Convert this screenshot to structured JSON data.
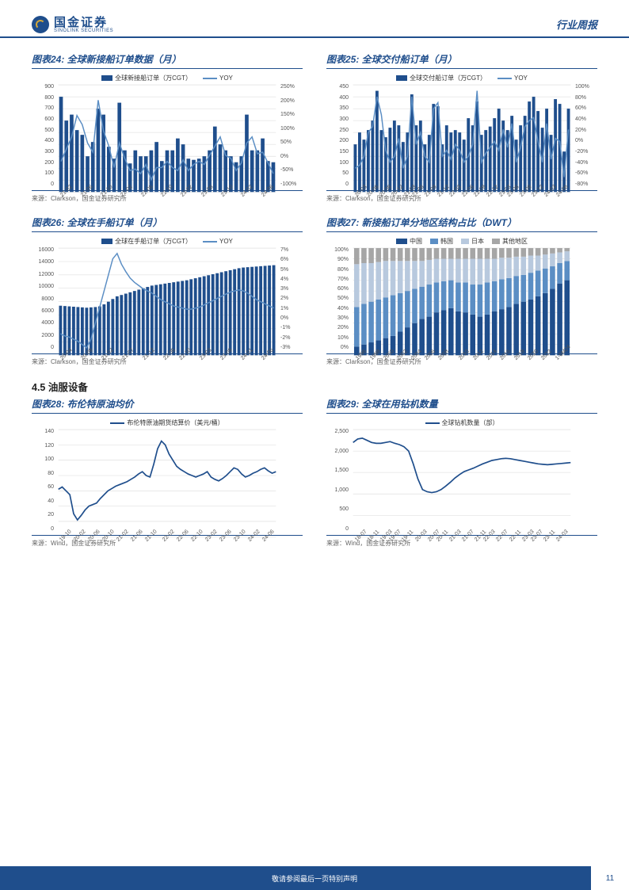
{
  "header": {
    "brand_cn": "国金证券",
    "brand_en": "SINOLINK SECURITIES",
    "report_type": "行业周报"
  },
  "footer": {
    "disclaimer": "敬请参阅最后一页特别声明",
    "page_number": "11"
  },
  "section_45": "4.5 油服设备",
  "colors": {
    "brand": "#1f4e8c",
    "accent": "#5b8ec4",
    "grid": "#d9d9d9",
    "stack1": "#1f4e8c",
    "stack2": "#5b8ec4",
    "stack3": "#b8c9de",
    "stack4": "#a6a6a6"
  },
  "c24": {
    "title": "图表24: 全球新接船订单数据（月）",
    "legend_bar": "全球新接船订单（万CGT）",
    "legend_line": "YOY",
    "axis_left": [
      "900",
      "800",
      "700",
      "600",
      "500",
      "400",
      "300",
      "200",
      "100",
      "0"
    ],
    "axis_right": [
      "250%",
      "200%",
      "150%",
      "100%",
      "50%",
      "0%",
      "-50%",
      "-100%"
    ],
    "xticks": [
      "21-02",
      "21-06",
      "21-10",
      "22-02",
      "22-06",
      "22-10",
      "23-02",
      "23-06",
      "23-10",
      "24-02",
      "24-06"
    ],
    "bars": [
      800,
      600,
      650,
      520,
      480,
      300,
      420,
      700,
      650,
      380,
      280,
      750,
      350,
      240,
      350,
      300,
      300,
      350,
      420,
      260,
      350,
      350,
      450,
      400,
      280,
      270,
      280,
      300,
      350,
      550,
      400,
      350,
      300,
      250,
      300,
      650,
      350,
      350,
      450,
      260,
      250
    ],
    "line_yoy": [
      0,
      40,
      80,
      150,
      120,
      60,
      30,
      200,
      100,
      50,
      -20,
      60,
      10,
      -30,
      -25,
      -40,
      -10,
      -60,
      -20,
      -20,
      0,
      -20,
      -30,
      5,
      -30,
      -10,
      0,
      -10,
      20,
      50,
      80,
      20,
      10,
      -30,
      -5,
      60,
      80,
      25,
      30,
      -5,
      -40
    ],
    "ylim_bar": [
      0,
      900
    ],
    "ylim_line": [
      -100,
      250
    ],
    "source": "来源：Clarkson，国金证券研究所"
  },
  "c25": {
    "title": "图表25: 全球交付船订单（月）",
    "legend_bar": "全球交付船订单（万CGT）",
    "legend_line": "YOY",
    "axis_left": [
      "450",
      "400",
      "350",
      "300",
      "250",
      "200",
      "150",
      "100",
      "50",
      "0"
    ],
    "axis_right": [
      "100%",
      "80%",
      "60%",
      "40%",
      "20%",
      "0%",
      "-20%",
      "-40%",
      "-60%",
      "-80%"
    ],
    "xticks": [
      "20-03",
      "20-06",
      "20-09",
      "20-12",
      "21-03",
      "21-06",
      "21-09",
      "21-12",
      "22-03",
      "22-06",
      "22-09",
      "22-12",
      "23-03",
      "23-06",
      "23-09",
      "23-12",
      "24-03",
      "24-06"
    ],
    "bars": [
      200,
      250,
      220,
      260,
      300,
      425,
      260,
      230,
      270,
      300,
      280,
      210,
      250,
      410,
      280,
      300,
      200,
      240,
      370,
      360,
      200,
      280,
      250,
      260,
      250,
      220,
      310,
      280,
      380,
      240,
      260,
      275,
      310,
      350,
      300,
      260,
      320,
      220,
      280,
      320,
      380,
      400,
      340,
      270,
      350,
      240,
      390,
      370,
      170,
      350
    ],
    "line_yoy": [
      -40,
      -35,
      -20,
      20,
      30,
      80,
      50,
      -10,
      -30,
      -20,
      10,
      -40,
      -20,
      80,
      0,
      20,
      -20,
      -30,
      60,
      70,
      -20,
      -10,
      -25,
      0,
      -10,
      -30,
      -20,
      0,
      90,
      -30,
      -15,
      -5,
      5,
      -10,
      25,
      -5,
      35,
      -30,
      -5,
      30,
      40,
      45,
      5,
      -30,
      35,
      -25,
      10,
      5,
      -55,
      25
    ],
    "ylim_bar": [
      0,
      450
    ],
    "ylim_line": [
      -80,
      100
    ],
    "source": "来源：Clarkson，国金证券研究所"
  },
  "c26": {
    "title": "图表26: 全球在手船订单（月）",
    "legend_bar": "全球在手船订单（万CGT）",
    "legend_line": "YOY",
    "axis_left": [
      "16000",
      "14000",
      "12000",
      "10000",
      "8000",
      "6000",
      "4000",
      "2000",
      "0"
    ],
    "axis_right": [
      "7%",
      "6%",
      "5%",
      "4%",
      "3%",
      "2%",
      "1%",
      "0%",
      "-1%",
      "-2%",
      "-3%"
    ],
    "xticks": [
      "20-04",
      "20-09",
      "21-02",
      "21-07",
      "21-12",
      "22-05",
      "22-10",
      "23-03",
      "23-08",
      "24-01",
      "24-06"
    ],
    "bars": [
      7400,
      7350,
      7300,
      7250,
      7200,
      7150,
      7100,
      7150,
      7200,
      7300,
      7600,
      8000,
      8400,
      8800,
      9000,
      9200,
      9400,
      9600,
      9800,
      10000,
      10200,
      10400,
      10500,
      10600,
      10700,
      10800,
      10900,
      11000,
      11100,
      11200,
      11350,
      11500,
      11650,
      11800,
      11950,
      12100,
      12250,
      12400,
      12550,
      12700,
      12850,
      13000,
      13100,
      13150,
      13200,
      13250,
      13300,
      13350,
      13400,
      13450
    ],
    "line_yoy": [
      -1.0,
      -1.2,
      -1.3,
      -1.5,
      -1.7,
      -2.0,
      -2.3,
      -1.5,
      0,
      1.5,
      3.0,
      4.5,
      6.0,
      6.5,
      5.5,
      4.8,
      4.2,
      3.8,
      3.5,
      3.2,
      3.0,
      2.8,
      2.5,
      2.2,
      2.0,
      1.8,
      1.6,
      1.5,
      1.4,
      1.3,
      1.3,
      1.4,
      1.5,
      1.7,
      1.9,
      2.1,
      2.3,
      2.5,
      2.7,
      2.9,
      3.0,
      3.1,
      3.0,
      2.8,
      2.5,
      2.2,
      2.0,
      1.8,
      1.6,
      1.4
    ],
    "ylim_bar": [
      0,
      16000
    ],
    "ylim_line": [
      -3,
      7
    ],
    "source": "来源：Clarkson，国金证券研究所"
  },
  "c27": {
    "title": "图表27: 新接船订单分地区结构占比（DWT）",
    "legend": {
      "cn": "中国",
      "kr": "韩国",
      "jp": "日本",
      "other": "其他地区"
    },
    "axis_left": [
      "100%",
      "90%",
      "80%",
      "70%",
      "60%",
      "50%",
      "40%",
      "30%",
      "20%",
      "10%",
      "0%"
    ],
    "xticks": [
      "1996",
      "1998",
      "2000",
      "2002",
      "2004",
      "2006",
      "2008",
      "2010",
      "2012",
      "2014",
      "2016",
      "2018",
      "2020",
      "2022",
      "1-6M24"
    ],
    "stacks": [
      [
        8,
        37,
        40,
        15
      ],
      [
        10,
        38,
        38,
        14
      ],
      [
        12,
        38,
        36,
        14
      ],
      [
        14,
        38,
        35,
        13
      ],
      [
        16,
        38,
        34,
        12
      ],
      [
        18,
        38,
        32,
        12
      ],
      [
        22,
        36,
        30,
        12
      ],
      [
        26,
        34,
        28,
        12
      ],
      [
        30,
        32,
        26,
        12
      ],
      [
        34,
        30,
        24,
        12
      ],
      [
        36,
        30,
        23,
        11
      ],
      [
        40,
        28,
        22,
        10
      ],
      [
        42,
        27,
        21,
        10
      ],
      [
        44,
        26,
        20,
        10
      ],
      [
        41,
        27,
        22,
        10
      ],
      [
        40,
        28,
        22,
        10
      ],
      [
        38,
        28,
        24,
        10
      ],
      [
        36,
        30,
        24,
        10
      ],
      [
        38,
        30,
        22,
        10
      ],
      [
        41,
        28,
        21,
        10
      ],
      [
        43,
        28,
        20,
        9
      ],
      [
        45,
        27,
        19,
        9
      ],
      [
        48,
        26,
        18,
        8
      ],
      [
        50,
        25,
        17,
        8
      ],
      [
        52,
        25,
        16,
        7
      ],
      [
        55,
        24,
        14,
        7
      ],
      [
        58,
        23,
        13,
        6
      ],
      [
        62,
        21,
        12,
        5
      ],
      [
        67,
        19,
        10,
        4
      ],
      [
        70,
        18,
        9,
        3
      ]
    ],
    "source": "来源：Clarkson，国金证券研究所"
  },
  "c28": {
    "title": "图表28: 布伦特原油均价",
    "legend_line": "布伦特原油期货结算价（美元/桶）",
    "axis_left": [
      "140",
      "120",
      "100",
      "80",
      "60",
      "40",
      "20",
      "0"
    ],
    "xticks": [
      "19-10",
      "20-02",
      "20-06",
      "20-10",
      "21-02",
      "21-06",
      "21-10",
      "22-02",
      "22-06",
      "22-10",
      "23-02",
      "23-06",
      "23-10",
      "24-02",
      "24-06"
    ],
    "line": [
      62,
      65,
      60,
      55,
      30,
      22,
      28,
      35,
      40,
      42,
      44,
      50,
      55,
      60,
      63,
      66,
      68,
      70,
      72,
      75,
      78,
      82,
      85,
      80,
      78,
      95,
      115,
      125,
      120,
      108,
      100,
      92,
      88,
      85,
      82,
      80,
      78,
      80,
      82,
      85,
      78,
      75,
      73,
      76,
      80,
      85,
      90,
      88,
      82,
      78,
      80,
      83,
      85,
      88,
      90,
      86,
      83,
      85
    ],
    "ylim": [
      0,
      140
    ],
    "source": "来源：Wind，国金证券研究所"
  },
  "c29": {
    "title": "图表29: 全球在用钻机数量",
    "legend_line": "全球钻机数量（部）",
    "axis_left": [
      "2,500",
      "2,000",
      "1,500",
      "1,000",
      "500",
      "0"
    ],
    "xticks": [
      "18-07",
      "18-11",
      "19-03",
      "19-07",
      "19-11",
      "20-03",
      "20-07",
      "20-11",
      "21-03",
      "21-07",
      "21-11",
      "22-03",
      "22-07",
      "22-11",
      "23-03",
      "23-07",
      "23-11",
      "24-03"
    ],
    "line": [
      2200,
      2280,
      2300,
      2250,
      2200,
      2180,
      2180,
      2200,
      2220,
      2180,
      2150,
      2100,
      2000,
      1700,
      1350,
      1100,
      1050,
      1030,
      1050,
      1100,
      1180,
      1270,
      1370,
      1450,
      1520,
      1560,
      1600,
      1650,
      1700,
      1740,
      1780,
      1800,
      1820,
      1830,
      1820,
      1800,
      1780,
      1760,
      1740,
      1720,
      1700,
      1690,
      1680,
      1690,
      1700,
      1710,
      1720,
      1730
    ],
    "ylim": [
      0,
      2500
    ],
    "source": "来源：Wind，国金证券研究所"
  }
}
